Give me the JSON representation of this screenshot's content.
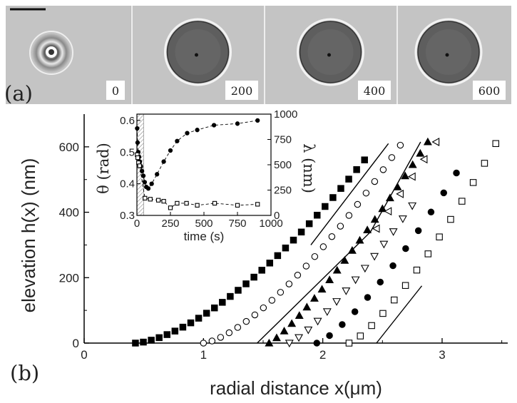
{
  "panel_labels": {
    "a": "(a)",
    "b": "(b)"
  },
  "micrographs": [
    {
      "time_label": "0",
      "appearance": "bright-ring"
    },
    {
      "time_label": "200",
      "appearance": "dark-disk"
    },
    {
      "time_label": "400",
      "appearance": "dark-disk"
    },
    {
      "time_label": "600",
      "appearance": "dark-disk"
    }
  ],
  "chart_data": [
    {
      "type": "scatter",
      "id": "main",
      "title": "",
      "xlabel": "radial distance x(μm)",
      "ylabel": "elevation  h(x) (nm)",
      "xlim": [
        0,
        3.55
      ],
      "ylim": [
        0,
        700
      ],
      "xticks": [
        0,
        1,
        2,
        3
      ],
      "yticks": [
        0,
        200,
        400,
        600
      ],
      "series": [
        {
          "marker": "filled-square",
          "x_start": 0.43,
          "x_end": 2.35,
          "n": 30,
          "y_end": 560,
          "power": 1.55
        },
        {
          "marker": "open-circle",
          "x_start": 1.0,
          "x_end": 2.65,
          "n": 24,
          "y_end": 605,
          "power": 1.45
        },
        {
          "marker": "filled-triangle-up",
          "x_start": 1.55,
          "x_end": 2.88,
          "n": 22,
          "y_end": 615,
          "power": 1.2
        },
        {
          "marker": "open-triangle-down",
          "x_start": 1.72,
          "x_end": 2.75,
          "n": 14,
          "y_end": 420,
          "power": 1.25
        },
        {
          "marker": "open-triangle-left",
          "x_start": 2.45,
          "x_end": 2.95,
          "n": 6,
          "y_end": 615,
          "power": 1.0,
          "y_start": 350
        },
        {
          "marker": "filled-circle",
          "x_start": 1.95,
          "x_end": 3.12,
          "n": 12,
          "y_end": 520,
          "power": 1.3
        },
        {
          "marker": "open-square",
          "x_start": 2.22,
          "x_end": 3.45,
          "n": 14,
          "y_end": 610,
          "power": 1.3
        }
      ],
      "fit_lines": [
        {
          "points": [
            [
              1.9,
              300
            ],
            [
              2.55,
              610
            ]
          ]
        },
        {
          "points": [
            [
              1.45,
              0
            ],
            [
              2.4,
              340
            ],
            [
              2.82,
              615
            ]
          ]
        },
        {
          "points": [
            [
              2.45,
              0
            ],
            [
              2.83,
              175
            ]
          ]
        }
      ]
    },
    {
      "type": "scatter",
      "id": "inset",
      "title": "",
      "xlabel": "time (s)",
      "ylabel": "θ (rad)",
      "y2label": "λ (nm)",
      "xlim": [
        0,
        1000
      ],
      "ylim": [
        0.3,
        0.62
      ],
      "y2lim": [
        0,
        1000
      ],
      "xticks": [
        0,
        250,
        500,
        750,
        1000
      ],
      "yticks": [
        0.3,
        0.4,
        0.5,
        0.6
      ],
      "y2ticks": [
        0,
        250,
        500,
        750,
        1000
      ],
      "shaded_region_x": [
        0,
        50
      ],
      "series": [
        {
          "marker": "filled-circle",
          "axis": "left",
          "x": [
            2,
            5,
            10,
            16,
            22,
            30,
            38,
            48,
            58,
            70,
            85,
            110,
            150,
            200,
            250,
            300,
            375,
            450,
            575,
            750,
            900
          ],
          "y": [
            0.575,
            0.53,
            0.5,
            0.485,
            0.47,
            0.455,
            0.44,
            0.425,
            0.405,
            0.39,
            0.385,
            0.4,
            0.43,
            0.47,
            0.505,
            0.535,
            0.56,
            0.57,
            0.585,
            0.59,
            0.6
          ]
        },
        {
          "marker": "open-square",
          "axis": "right",
          "x": [
            2,
            6,
            12,
            20,
            60,
            100,
            160,
            200,
            250,
            300,
            370,
            450,
            580,
            750,
            900
          ],
          "y": [
            600,
            570,
            520,
            490,
            170,
            160,
            150,
            140,
            75,
            120,
            120,
            100,
            120,
            100,
            110
          ]
        }
      ]
    }
  ]
}
